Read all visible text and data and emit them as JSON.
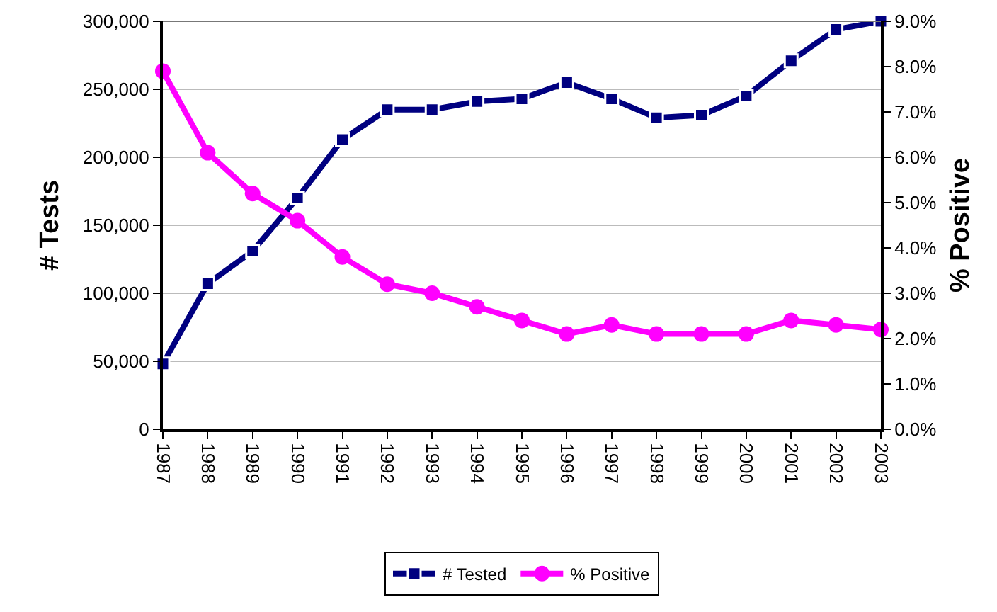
{
  "chart_data": {
    "type": "line",
    "ylabel": "# Tests",
    "y2label": "% Positive",
    "categories": [
      "1987",
      "1988",
      "1989",
      "1990",
      "1991",
      "1992",
      "1993",
      "1994",
      "1995",
      "1996",
      "1997",
      "1998",
      "1999",
      "2000",
      "2001",
      "2002",
      "2003"
    ],
    "series": [
      {
        "name": "# Tested",
        "color": "#000080",
        "marker": "square",
        "values": [
          48000,
          107000,
          131000,
          170000,
          213000,
          235000,
          235000,
          241000,
          243000,
          255000,
          243000,
          229000,
          231000,
          245000,
          271000,
          294000,
          300000
        ]
      },
      {
        "name": "% Positive",
        "color": "#ff00ff",
        "marker": "circle",
        "axis": "y2",
        "values": [
          7.9,
          6.1,
          5.2,
          4.6,
          3.8,
          3.2,
          3.0,
          2.7,
          2.4,
          2.1,
          2.3,
          2.1,
          2.1,
          2.1,
          2.4,
          2.3,
          2.2
        ]
      }
    ],
    "ylim": [
      0,
      300000
    ],
    "yticks": [
      {
        "value": 0,
        "label": "0"
      },
      {
        "value": 50000,
        "label": "50,000"
      },
      {
        "value": 100000,
        "label": "100,000"
      },
      {
        "value": 150000,
        "label": "150,000"
      },
      {
        "value": 200000,
        "label": "200,000"
      },
      {
        "value": 250000,
        "label": "250,000"
      },
      {
        "value": 300000,
        "label": "300,000"
      }
    ],
    "y2lim": [
      0,
      9
    ],
    "y2ticks": [
      {
        "value": 0,
        "label": "0.0%"
      },
      {
        "value": 1,
        "label": "1.0%"
      },
      {
        "value": 2,
        "label": "2.0%"
      },
      {
        "value": 3,
        "label": "3.0%"
      },
      {
        "value": 4,
        "label": "4.0%"
      },
      {
        "value": 5,
        "label": "5.0%"
      },
      {
        "value": 6,
        "label": "6.0%"
      },
      {
        "value": 7,
        "label": "7.0%"
      },
      {
        "value": 8,
        "label": "8.0%"
      },
      {
        "value": 9,
        "label": "9.0%"
      }
    ],
    "grid": "y",
    "legend": "bottom"
  }
}
